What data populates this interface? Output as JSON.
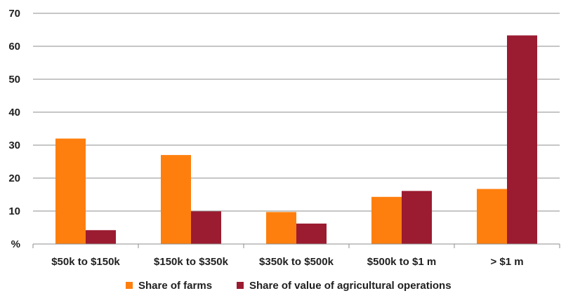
{
  "chart_data": {
    "type": "bar",
    "title": "",
    "xlabel": "",
    "ylabel": "%",
    "ylim": [
      0,
      70
    ],
    "yticks": [
      0,
      10,
      20,
      30,
      40,
      50,
      60,
      70
    ],
    "ytick_labels": [
      "%",
      "10",
      "20",
      "30",
      "40",
      "50",
      "60",
      "70"
    ],
    "grid": true,
    "legend_position": "bottom",
    "categories": [
      "$50k to $150k",
      "$150k to $350k",
      "$350k to $500k",
      "$500k to $1 m",
      "> $1 m"
    ],
    "series": [
      {
        "name": "Share of farms",
        "color": "#FF7F0E",
        "values": [
          32,
          27,
          9.7,
          14.3,
          16.7
        ]
      },
      {
        "name": "Share of value of agricultural operations",
        "color": "#9B1B30",
        "values": [
          4.2,
          9.9,
          6.2,
          16.1,
          63.3
        ]
      }
    ]
  }
}
